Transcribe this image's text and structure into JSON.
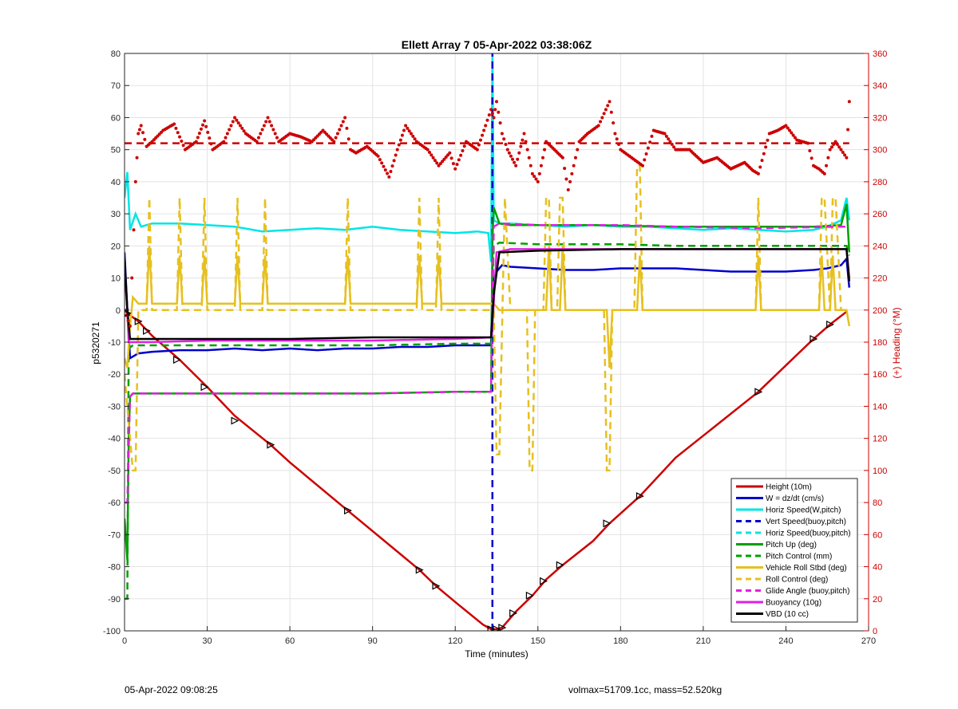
{
  "chart_data": {
    "type": "line",
    "title": "Ellett Array 7 05-Apr-2022 03:38:06Z",
    "xlabel": "Time (minutes)",
    "ylabel_left": "p5320271",
    "ylabel_right": "(+) Heading (°M)",
    "xlim": [
      0,
      270
    ],
    "xticks": [
      0,
      30,
      60,
      90,
      120,
      150,
      180,
      210,
      240,
      270
    ],
    "ylim_left": [
      -100,
      80
    ],
    "yticks_left": [
      -100,
      -90,
      -80,
      -70,
      -60,
      -50,
      -40,
      -30,
      -20,
      -10,
      0,
      10,
      20,
      30,
      40,
      50,
      60,
      70,
      80
    ],
    "ylim_right": [
      0,
      360
    ],
    "yticks_right": [
      0,
      20,
      40,
      60,
      80,
      100,
      120,
      140,
      160,
      180,
      200,
      220,
      240,
      260,
      280,
      300,
      320,
      340,
      360
    ],
    "grid": true,
    "legend_position": "bottom-right",
    "right_axis_color": "#cc0000",
    "series": [
      {
        "name": "Height (10m)",
        "color": "#cc0000",
        "style": "solid",
        "x": [
          0,
          1,
          5,
          10,
          20,
          30,
          40,
          53,
          60,
          81,
          100,
          107,
          113,
          120,
          130,
          133,
          135,
          137,
          142,
          148,
          153,
          159,
          170,
          176,
          187,
          200,
          230,
          250,
          256,
          262
        ],
        "y": [
          0,
          -1,
          -3.5,
          -8,
          -15.5,
          -24,
          -33,
          -42,
          -47.5,
          -62.5,
          -76,
          -81,
          -86,
          -91,
          -98,
          -99.5,
          -99.5,
          -99,
          -94,
          -89,
          -84,
          -79.5,
          -72,
          -66.5,
          -58,
          -46,
          -25.5,
          -9,
          -4.5,
          -0.5
        ]
      },
      {
        "name": "W = dz/dt (cm/s)",
        "color": "#0000cc",
        "style": "solid",
        "x": [
          0,
          1,
          2,
          5,
          10,
          20,
          30,
          40,
          50,
          60,
          70,
          80,
          90,
          100,
          110,
          120,
          133,
          133.5,
          135,
          137,
          140,
          150,
          160,
          170,
          180,
          190,
          200,
          210,
          220,
          230,
          240,
          250,
          255,
          260,
          262,
          263
        ],
        "y": [
          18,
          0,
          -15,
          -13.5,
          -13,
          -12.5,
          -12.5,
          -12,
          -12.5,
          -12,
          -12.5,
          -12,
          -12,
          -11.5,
          -11.5,
          -11,
          -11,
          8,
          12,
          14,
          13.5,
          13,
          12.5,
          12.5,
          13,
          13,
          13,
          12.5,
          12,
          12,
          12,
          12.5,
          13,
          14,
          16,
          7
        ]
      },
      {
        "name": "Horiz Speed(W,pitch)",
        "color": "#00e5e5",
        "style": "solid",
        "x": [
          0,
          1,
          2,
          4,
          6,
          10,
          20,
          30,
          40,
          50,
          60,
          70,
          80,
          90,
          100,
          110,
          120,
          128,
          132,
          133,
          133.5,
          134,
          136,
          140,
          150,
          160,
          170,
          180,
          190,
          200,
          210,
          220,
          230,
          240,
          250,
          255,
          260,
          262,
          263
        ],
        "y": [
          35,
          43,
          25,
          30,
          26,
          27,
          27,
          26.5,
          26,
          24.5,
          25,
          25.5,
          25,
          26,
          25,
          24.5,
          24,
          24.5,
          24,
          15,
          80,
          28,
          27,
          27,
          26.5,
          26,
          26.5,
          26,
          26,
          25.5,
          25,
          25.5,
          25,
          24.5,
          25,
          26,
          28,
          35,
          28
        ]
      },
      {
        "name": "Vert Speed(buoy,pitch)",
        "color": "#0000cc",
        "style": "dashed",
        "x": [
          133.5,
          133.5
        ],
        "y": [
          -100,
          80
        ]
      },
      {
        "name": "Horiz Speed(buoy,pitch)",
        "color": "#00e5e5",
        "style": "dashed",
        "x": [
          133,
          134
        ],
        "y": [
          30,
          30
        ]
      },
      {
        "name": "Pitch Up (deg)",
        "color": "#00a000",
        "style": "solid",
        "x": [
          0,
          1,
          1.5,
          2,
          3,
          5,
          10,
          30,
          60,
          90,
          120,
          133,
          133.5,
          134,
          136,
          140,
          150,
          170,
          200,
          230,
          250,
          260,
          262,
          263
        ],
        "y": [
          -65,
          -78,
          -40,
          -27,
          -26,
          -26,
          -26,
          -26,
          -26,
          -26,
          -25.5,
          -25.5,
          22,
          32,
          27,
          26.5,
          26.5,
          26.5,
          26,
          26,
          26,
          26.5,
          33,
          18
        ]
      },
      {
        "name": "Pitch Control (mm)",
        "color": "#00a000",
        "style": "dashed",
        "x": [
          0,
          1,
          1.5,
          3,
          10,
          30,
          60,
          90,
          120,
          133,
          134,
          136,
          150,
          180,
          200,
          230,
          262,
          263
        ],
        "y": [
          -90,
          -90,
          -12,
          -11,
          -11,
          -11,
          -11,
          -11,
          -10.5,
          -10.5,
          20,
          21,
          20.5,
          20.5,
          20,
          20,
          20,
          17
        ]
      },
      {
        "name": "Vehicle Roll Stbd (deg)",
        "color": "#e6c020",
        "style": "solid",
        "x": [
          0,
          1,
          2,
          3,
          5,
          8,
          9,
          10,
          15,
          19,
          20,
          21,
          28,
          29,
          30,
          31,
          40,
          41,
          42,
          43,
          50,
          51,
          52,
          53,
          60,
          80,
          81,
          82,
          83,
          100,
          106,
          107,
          108,
          113,
          114,
          115,
          120,
          130,
          133,
          134,
          136,
          140,
          150,
          153,
          154,
          155,
          158,
          159,
          160,
          170,
          175,
          176,
          177,
          180,
          186,
          187,
          188,
          200,
          220,
          229,
          230,
          231,
          240,
          250,
          252,
          253,
          254,
          256,
          257,
          258,
          260,
          262,
          263
        ],
        "y": [
          -15,
          -18,
          -5,
          4,
          2,
          2,
          20,
          2,
          2,
          2,
          17,
          2,
          2,
          17,
          2,
          2,
          2,
          17,
          2,
          2,
          2,
          17,
          2,
          2,
          2,
          2,
          17,
          2,
          2,
          2,
          2,
          17,
          2,
          2,
          17,
          2,
          2,
          2,
          2,
          2,
          0,
          0,
          0,
          0,
          20,
          0,
          0,
          20,
          0,
          0,
          0,
          -18,
          0,
          0,
          0,
          17,
          0,
          0,
          0,
          0,
          17,
          0,
          0,
          0,
          0,
          17,
          0,
          0,
          17,
          0,
          0,
          0,
          -5
        ]
      },
      {
        "name": "Roll Control (deg)",
        "color": "#e6c020",
        "style": "dashed",
        "x": [
          0,
          2,
          3,
          4,
          5,
          6,
          8,
          9,
          10,
          15,
          19,
          20,
          21,
          28,
          29,
          30,
          31,
          40,
          41,
          42,
          43,
          50,
          51,
          52,
          53,
          60,
          80,
          81,
          82,
          83,
          100,
          106,
          107,
          108,
          113,
          114,
          115,
          120,
          130,
          133,
          134,
          135,
          136,
          138,
          140,
          146,
          147,
          148,
          149,
          150,
          152,
          153,
          154,
          155,
          157,
          158,
          159,
          160,
          170,
          174,
          175,
          176,
          177,
          180,
          185,
          186,
          187,
          188,
          200,
          220,
          229,
          230,
          231,
          240,
          250,
          252,
          253,
          254,
          256,
          257,
          258,
          260,
          262,
          263
        ],
        "y": [
          -20,
          -40,
          -50,
          -50,
          0,
          0,
          0,
          35,
          0,
          0,
          0,
          35,
          0,
          0,
          35,
          0,
          0,
          0,
          35,
          0,
          0,
          0,
          35,
          0,
          0,
          0,
          0,
          35,
          0,
          0,
          0,
          0,
          35,
          0,
          0,
          35,
          0,
          0,
          0,
          0,
          0,
          -45,
          -45,
          35,
          0,
          0,
          -50,
          -50,
          0,
          0,
          0,
          35,
          35,
          0,
          0,
          35,
          35,
          0,
          0,
          0,
          -50,
          -50,
          0,
          0,
          0,
          45,
          45,
          0,
          0,
          0,
          0,
          35,
          0,
          0,
          0,
          0,
          35,
          35,
          0,
          35,
          35,
          0,
          0,
          0
        ]
      },
      {
        "name": "Glide Angle (buoy,pitch)",
        "color": "#e020e0",
        "style": "dashed",
        "x": [
          0,
          1,
          2,
          3,
          10,
          30,
          60,
          90,
          120,
          133,
          134,
          136,
          150,
          180,
          200,
          230,
          260,
          262
        ],
        "y": [
          -60,
          -60,
          -27,
          -26,
          -26,
          -26,
          -26,
          -26,
          -25.5,
          -25.5,
          26,
          27,
          26.5,
          26.5,
          26,
          25.5,
          26,
          26
        ]
      },
      {
        "name": "Buoyancy (10g)",
        "color": "#e020e0",
        "style": "solid",
        "x": [
          0,
          1,
          1.5,
          3,
          10,
          30,
          60,
          90,
          120,
          133,
          133.5,
          135,
          140,
          150,
          180,
          200,
          230,
          260,
          262,
          263
        ],
        "y": [
          12,
          0,
          -10,
          -10,
          -10,
          -9.5,
          -9.5,
          -9.5,
          -9,
          -8.5,
          -5,
          18,
          19,
          19,
          19,
          19,
          19,
          19,
          19,
          10
        ]
      },
      {
        "name": "VBD (10 cc)",
        "color": "#000000",
        "style": "solid",
        "x": [
          0,
          1,
          2,
          3,
          10,
          30,
          60,
          90,
          120,
          133,
          134,
          136,
          150,
          180,
          200,
          230,
          262,
          263
        ],
        "y": [
          16,
          0,
          -9,
          -9,
          -9,
          -9,
          -9,
          -8.5,
          -8.5,
          -8.5,
          5,
          18,
          18.5,
          19,
          19,
          19,
          19,
          9
        ]
      },
      {
        "name": "Heading",
        "color": "#cc0000",
        "style": "dots",
        "axis": "right",
        "x": [
          0,
          2,
          4,
          5,
          6,
          8,
          10,
          14,
          18,
          22,
          26,
          29,
          32,
          36,
          40,
          44,
          48,
          52,
          56,
          60,
          64,
          68,
          72,
          76,
          80,
          82,
          84,
          88,
          92,
          96,
          99,
          102,
          106,
          110,
          114,
          118,
          120,
          124,
          128,
          131,
          133,
          134,
          135,
          137,
          139,
          142,
          145,
          148,
          150,
          153,
          156,
          159,
          161,
          163,
          165,
          168,
          172,
          176,
          178,
          180,
          184,
          188,
          192,
          196,
          200,
          205,
          210,
          215,
          220,
          225,
          228,
          230,
          234,
          237,
          240,
          244,
          248,
          250,
          252,
          254,
          256,
          258,
          260,
          262,
          263
        ],
        "y": [
          200,
          190,
          280,
          310,
          315,
          302,
          305,
          312,
          316,
          300,
          305,
          318,
          300,
          305,
          320,
          310,
          305,
          320,
          305,
          310,
          308,
          305,
          312,
          305,
          320,
          300,
          298,
          302,
          296,
          283,
          300,
          315,
          305,
          300,
          290,
          298,
          288,
          305,
          300,
          315,
          325,
          320,
          330,
          310,
          300,
          290,
          310,
          285,
          280,
          305,
          300,
          295,
          275,
          290,
          305,
          310,
          315,
          330,
          310,
          300,
          295,
          290,
          312,
          310,
          300,
          300,
          292,
          295,
          288,
          292,
          287,
          285,
          310,
          312,
          315,
          306,
          304,
          290,
          288,
          285,
          300,
          305,
          300,
          295,
          330
        ]
      },
      {
        "name": "Heading Mean",
        "color": "#cc0000",
        "style": "dashed",
        "axis": "right",
        "x": [
          0,
          263
        ],
        "y": [
          304,
          304
        ]
      }
    ],
    "markers": {
      "x": [
        1,
        5,
        8,
        19,
        29,
        40,
        53,
        81,
        107,
        113,
        133,
        135,
        137,
        141,
        147,
        152,
        158,
        175,
        187,
        230,
        250,
        256
      ],
      "y": [
        -1,
        -3.5,
        -6.5,
        -15.5,
        -24,
        -34.5,
        -42,
        -62.5,
        -81,
        -86,
        -99.5,
        -99.5,
        -99,
        -94.5,
        -89,
        -84.5,
        -79.5,
        -66.5,
        -58,
        -25.5,
        -9,
        -4.5
      ]
    }
  },
  "footer": {
    "left": "05-Apr-2022 09:08:25",
    "right": "volmax=51709.1cc, mass=52.520kg"
  }
}
